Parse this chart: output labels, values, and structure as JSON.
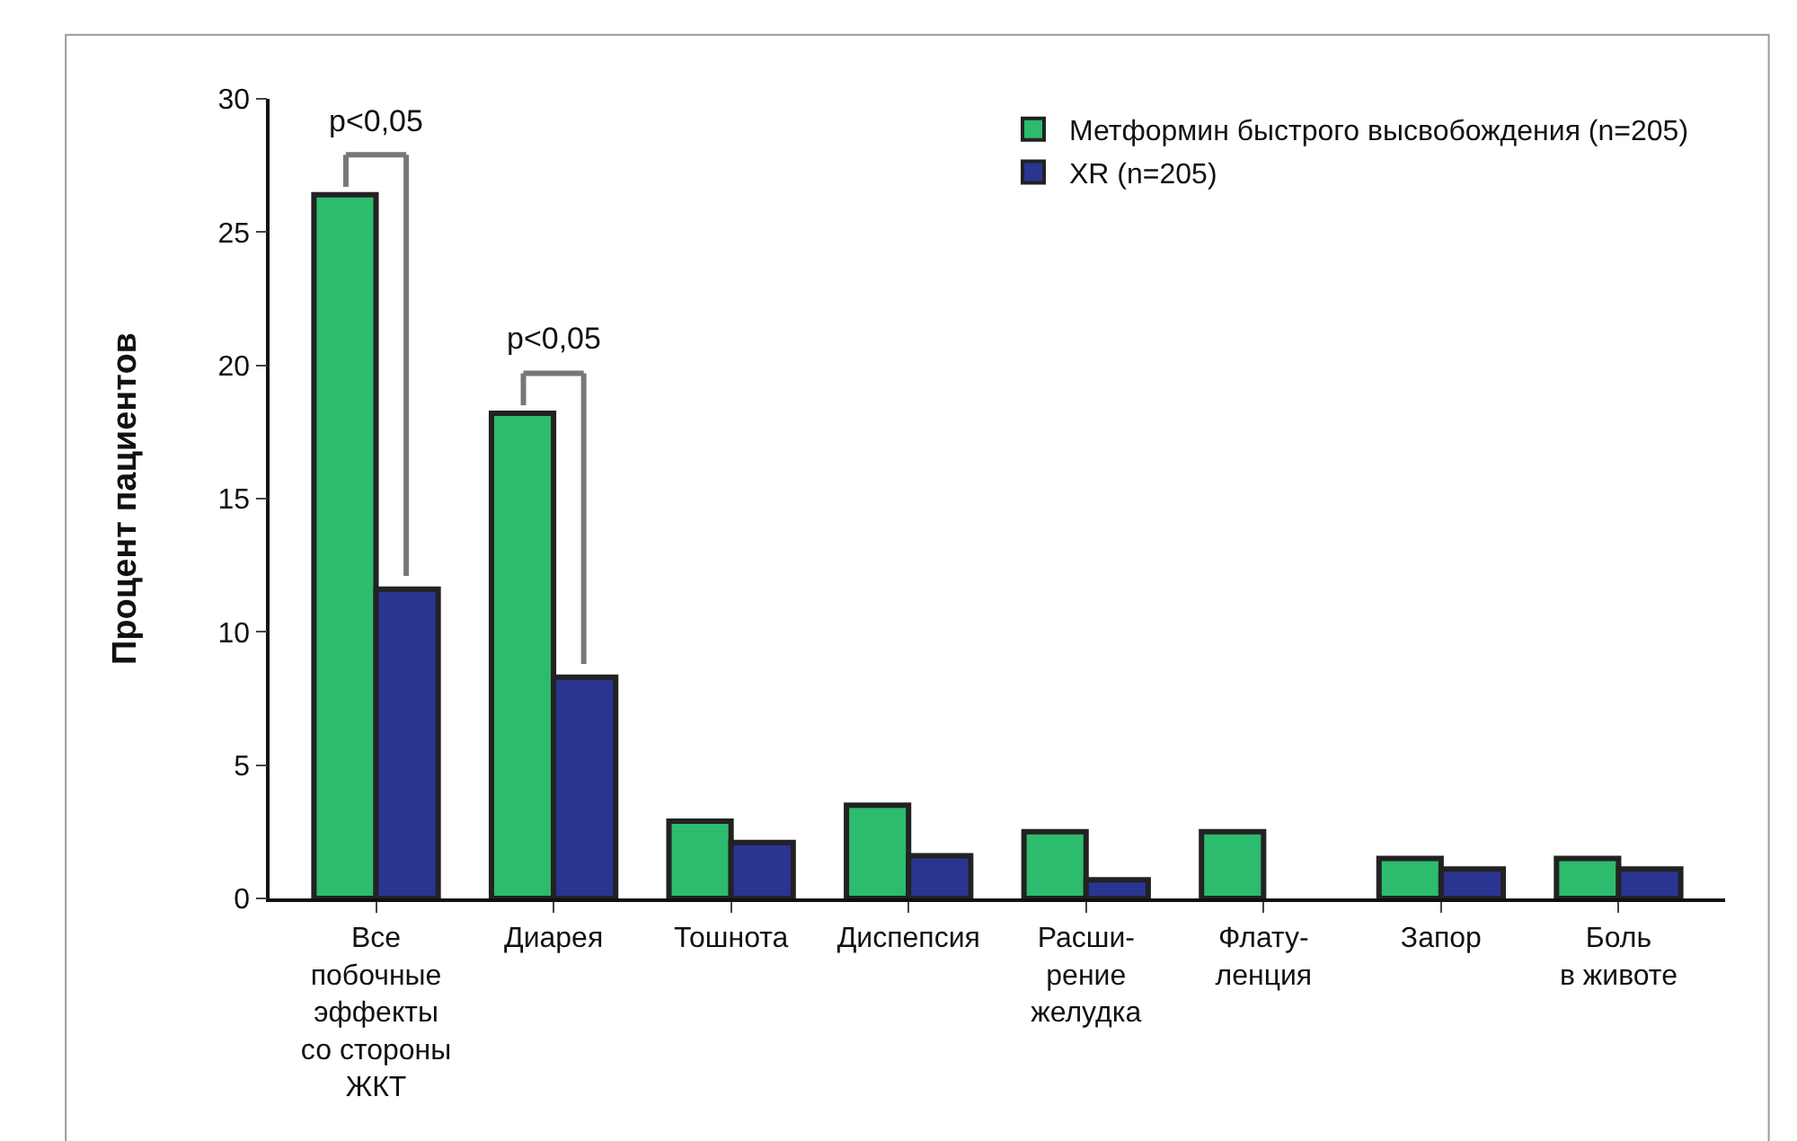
{
  "chart_data": {
    "type": "bar",
    "ylabel": "Процент пациентов",
    "categories": [
      "Все\nпобочные\nэффекты\nсо стороны\nЖКТ",
      "Диарея",
      "Тошнота",
      "Диспепсия",
      "Расши-\nрение\nжелудка",
      "Флату-\nленция",
      "Запор",
      "Боль\nв животе"
    ],
    "series": [
      {
        "name": "Метформин быстрого высвобождения (n=205)",
        "color": "#2dbb6e",
        "values": [
          26.4,
          18.2,
          2.9,
          3.5,
          2.5,
          2.5,
          1.5,
          1.5
        ]
      },
      {
        "name": "XR (n=205)",
        "color": "#2a3591",
        "values": [
          11.6,
          8.3,
          2.1,
          1.6,
          0.7,
          null,
          1.1,
          1.1
        ]
      }
    ],
    "ylim": [
      0,
      30
    ],
    "yticks": [
      0,
      5,
      10,
      15,
      20,
      25,
      30
    ],
    "legend": "top right",
    "annotations": [
      "p<0,05",
      "p<0,05"
    ]
  }
}
